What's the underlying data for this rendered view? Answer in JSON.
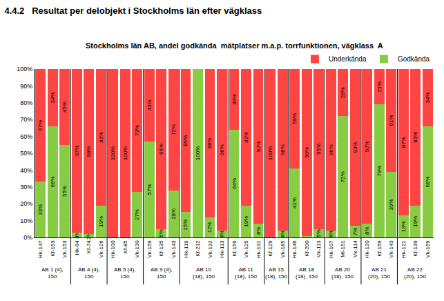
{
  "chart_data": {
    "type": "bar",
    "heading": "4.4.2   Resultat per delobjekt i Stockholms län efter vägklass",
    "title": "Stockholms län AB, andel godkända  mätplatser m.a.p. torrfunktionen, vägklass  A",
    "categories": [
      "Hk-147",
      "Kf-153",
      "Vk-153",
      "Hk-94",
      "Kf-74",
      "Vk-126",
      "Hk-100",
      "Kf-85",
      "Vk-130",
      "Vk-159",
      "Kf-135",
      "Vk-143",
      "Hk-119",
      "Kf-212",
      "Vk-132",
      "Hk-113",
      "Kf-156",
      "Vk-125",
      "Hk-131",
      "Kf-129",
      "Vk-185",
      "Hk-146",
      "Kf-200",
      "Vk-113",
      "Hk-107",
      "Ml-151",
      "Vk-114",
      "Hk-120",
      "Kf-159",
      "Vk-143",
      "Hk-121",
      "Kf-139",
      "Vk-159"
    ],
    "groups": [
      "AB 1 (4),\n150",
      "AB 1 (4),\n150",
      "AB 1 (4),\n150",
      "AB 4 (4),\n150",
      "AB 4 (4),\n150",
      "AB 4 (4),\n150",
      "AB 5 (4),\n150",
      "AB 5 (4),\n150",
      "AB 5 (4),\n150",
      "AB 9 (4),\n150",
      "AB 9 (4),\n150",
      "AB 9 (4),\n150",
      "AB 10\n(18), 150",
      "AB 10\n(18), 150",
      "AB 10\n(18), 150",
      "AB 10\n(18), 150",
      "AB 11\n(18), 150",
      "AB 11\n(18), 150",
      "AB 11\n(18), 150",
      "AB 15\n(18), 150",
      "AB 15\n(18), 150",
      "AB 18\n(18), 150",
      "AB 18\n(18), 150",
      "AB 18\n(18), 150",
      "AB 20\n(18), 150",
      "AB 20\n(18), 150",
      "AB 20\n(18), 150",
      "AB 21\n(20), 150",
      "AB 21\n(20), 150",
      "AB 21\n(20), 150",
      "AB 22\n(20), 150",
      "AB 22\n(20), 150",
      "AB 22\n(20), 150"
    ],
    "series": [
      {
        "name": "Godkända",
        "color": "#88CC44",
        "values": [
          33,
          66,
          55,
          3,
          2,
          19,
          0,
          0,
          27,
          57,
          5,
          28,
          15,
          100,
          12,
          4,
          64,
          19,
          8,
          0,
          4,
          41,
          1,
          5,
          4,
          72,
          7,
          8,
          79,
          39,
          13,
          19,
          66
        ],
        "value_labels": [
          "33%",
          "66%",
          "55%",
          "3%",
          "2%",
          "19%",
          null,
          null,
          "27%",
          "57%",
          "5%",
          "28%",
          "15%",
          "100%",
          "12%",
          "4%",
          "64%",
          "19%",
          "8%",
          null,
          "4%",
          "41%",
          null,
          "5%",
          "4%",
          "72%",
          "7%",
          "8%",
          "79%",
          "39%",
          "13%",
          "19%",
          "66%"
        ]
      },
      {
        "name": "Underkända",
        "color": "#FF4444",
        "values": [
          67,
          34,
          45,
          97,
          98,
          81,
          100,
          100,
          73,
          43,
          95,
          72,
          85,
          0,
          88,
          96,
          36,
          81,
          92,
          100,
          96,
          59,
          99,
          95,
          96,
          28,
          93,
          92,
          21,
          61,
          87,
          81,
          34
        ],
        "value_labels": [
          "67%",
          "34%",
          "45%",
          "97%",
          "98%",
          "81%",
          "100%",
          "100%",
          "73%",
          "43%",
          "95%",
          "72%",
          "85%",
          null,
          "88%",
          "96%",
          "36%",
          "81%",
          "92%",
          "100%",
          "96%",
          "59%",
          "99%",
          "95%",
          "96%",
          "28%",
          "93%",
          "92%",
          "21%",
          "61%",
          "87%",
          "81%",
          "34%"
        ]
      }
    ],
    "stacked": true,
    "data_labels": true,
    "ylim": [
      0,
      100
    ],
    "yticks": [
      {
        "value": 0,
        "label": "0%"
      },
      {
        "value": 10,
        "label": "10%"
      },
      {
        "value": 20,
        "label": "20%"
      },
      {
        "value": 30,
        "label": "30%"
      },
      {
        "value": 40,
        "label": "40%"
      },
      {
        "value": 50,
        "label": "50%"
      },
      {
        "value": 60,
        "label": "60%"
      },
      {
        "value": 70,
        "label": "70%"
      },
      {
        "value": 80,
        "label": "80%"
      },
      {
        "value": 90,
        "label": "90%"
      },
      {
        "value": 100,
        "label": "100%"
      }
    ],
    "grid": true,
    "legend": "upper right"
  }
}
